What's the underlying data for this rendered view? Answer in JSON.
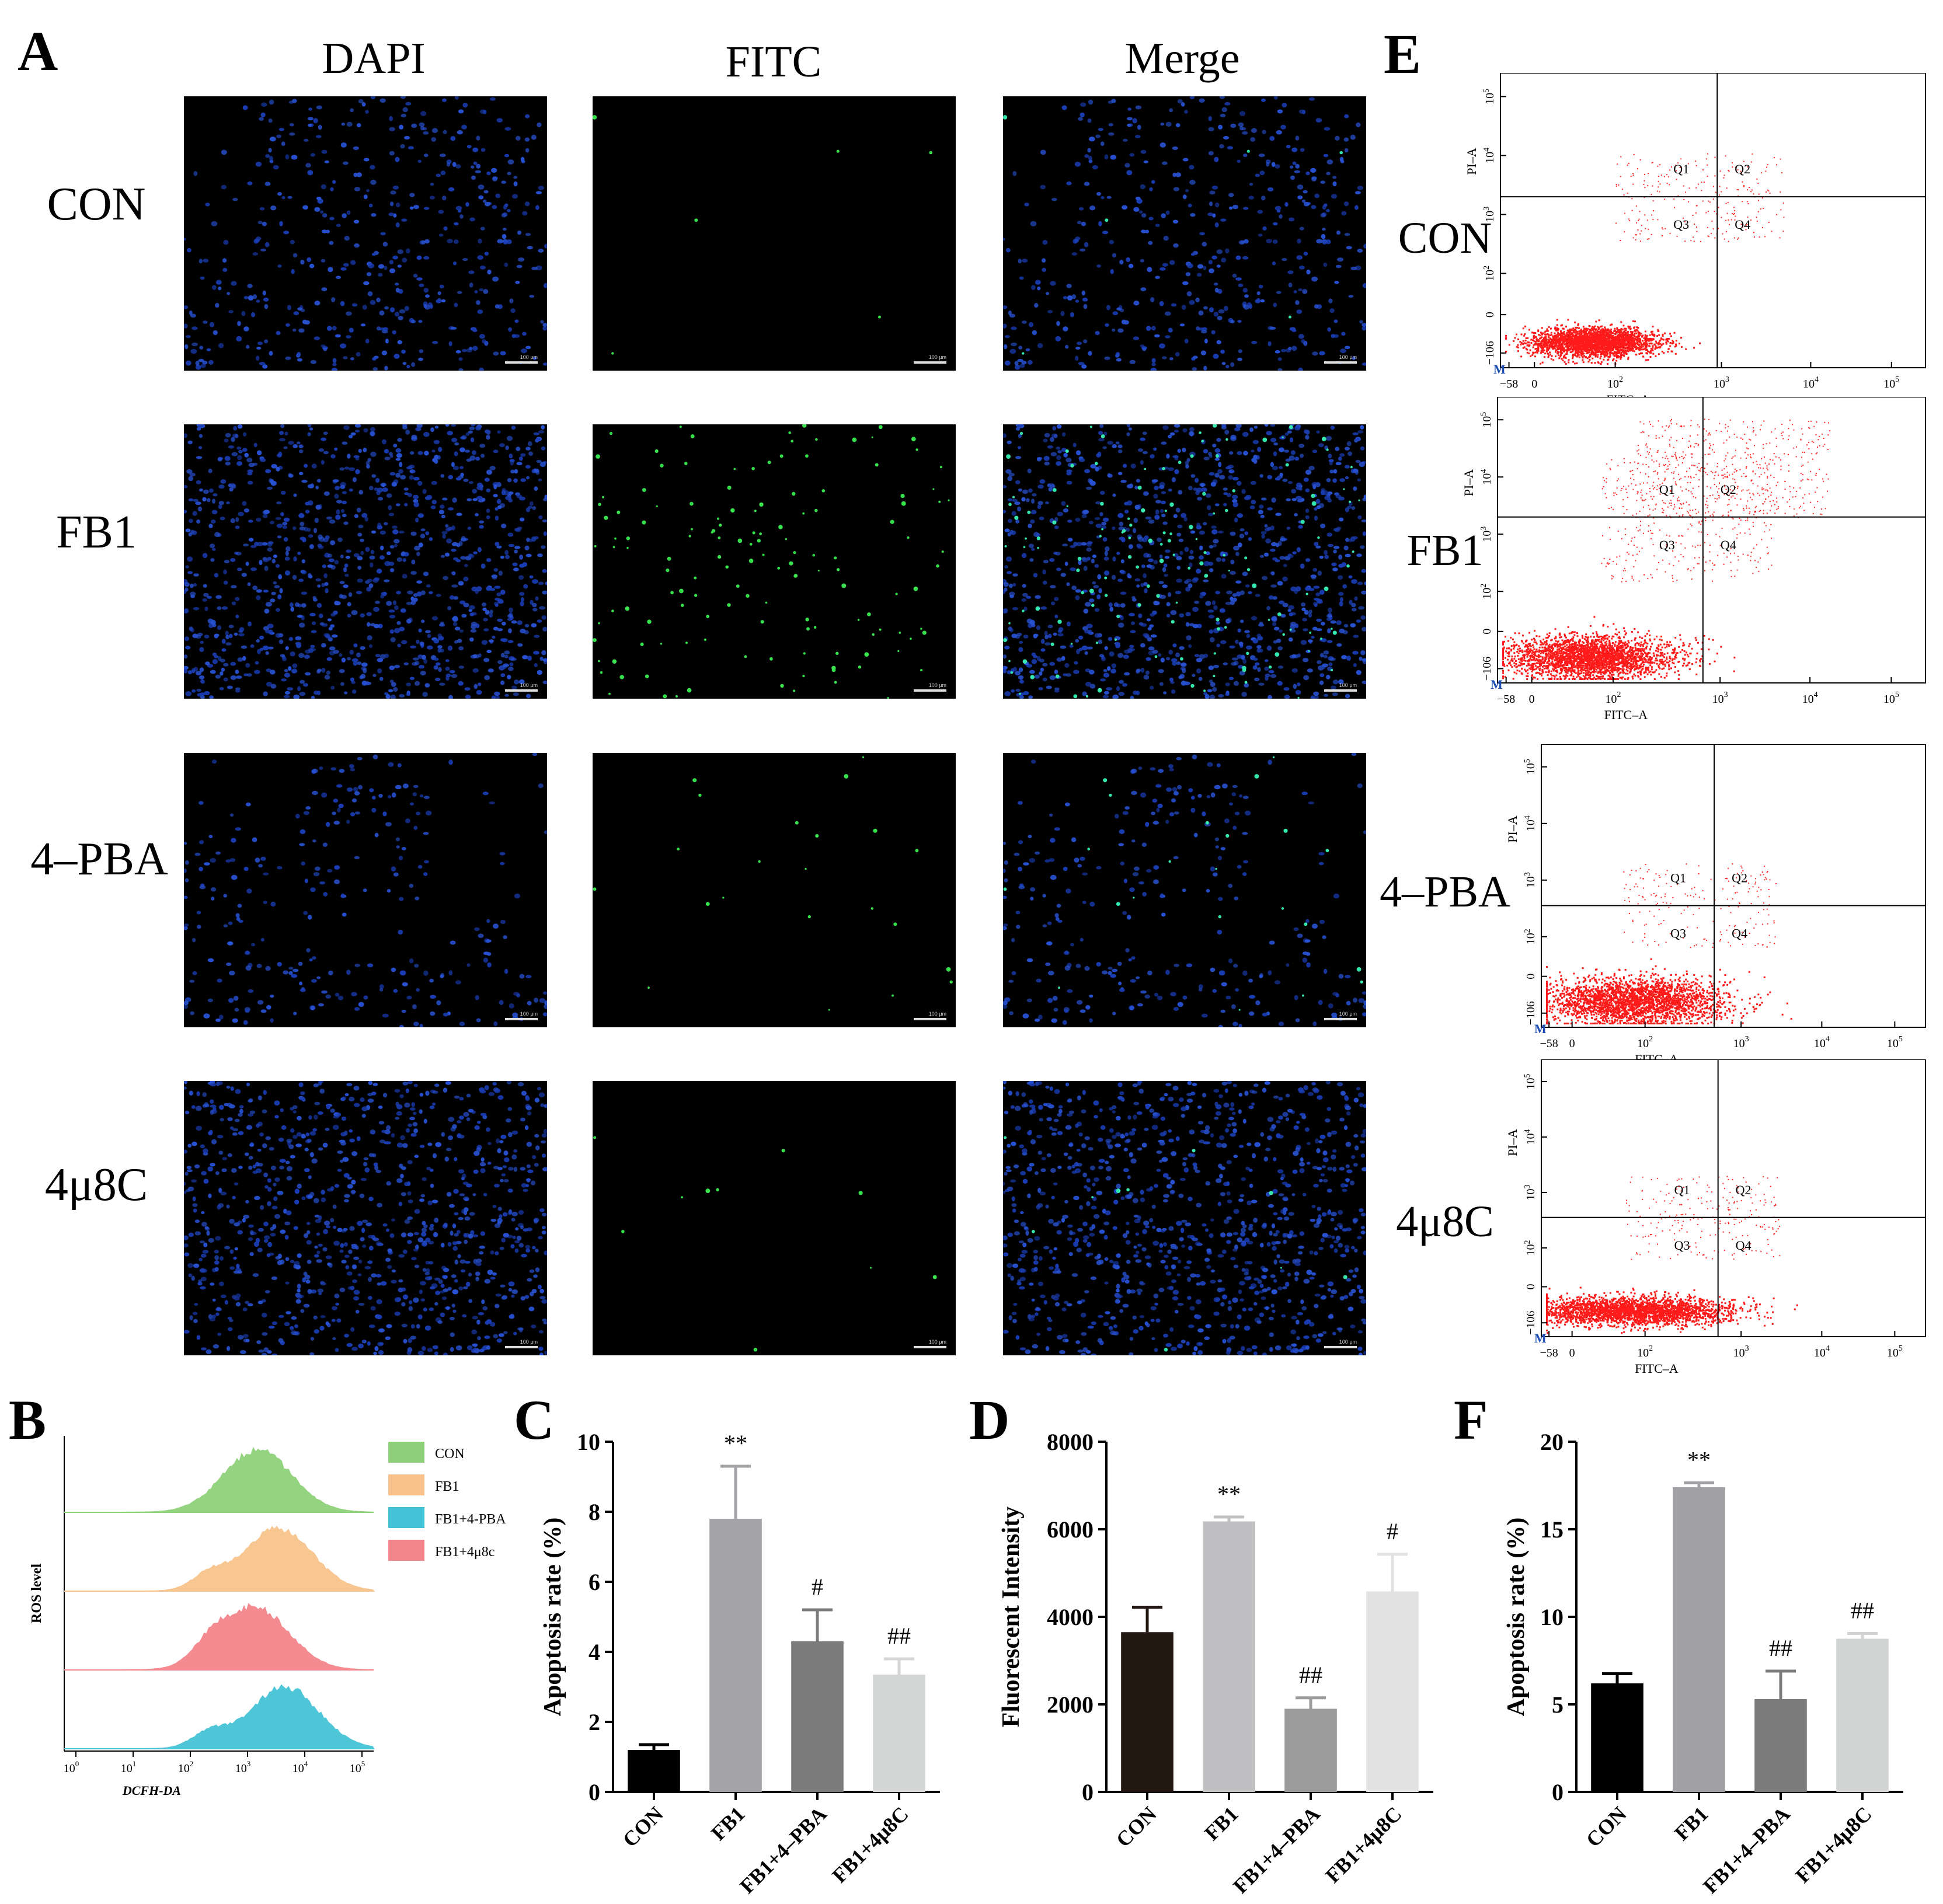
{
  "panels": {
    "A": {
      "letter": "A",
      "columns": [
        "DAPI",
        "FITC",
        "Merge"
      ],
      "rows": [
        "CON",
        "FB1",
        "4–PBA",
        "4μ8C"
      ],
      "scale_bar": "100 μm",
      "fitc_density": [
        6,
        140,
        22,
        10
      ]
    },
    "B": {
      "letter": "B",
      "ylabel": "ROS level",
      "xlabel": "DCFH-DA",
      "x_ticks": [
        "10",
        "10",
        "10",
        "10",
        "10",
        "10"
      ],
      "x_tick_exponents": [
        "0",
        "1",
        "2",
        "3",
        "4",
        "5"
      ],
      "legend": [
        {
          "name": "CON",
          "color": "#8fd17a"
        },
        {
          "name": "FB1",
          "color": "#f8c38c"
        },
        {
          "name": "FB1+4-PBA",
          "color": "#45c3d6"
        },
        {
          "name": "FB1+4μ8c",
          "color": "#f3858c"
        }
      ],
      "traces": [
        {
          "color": "#8fd17a",
          "peak_log": 3.25
        },
        {
          "color": "#f8c38c",
          "peak_log": 3.6
        },
        {
          "color": "#f3858c",
          "peak_log": 3.2
        },
        {
          "color": "#45c3d6",
          "peak_log": 3.7
        }
      ]
    },
    "E": {
      "letter": "E",
      "rows": [
        "CON",
        "FB1",
        "4–PBA",
        "4μ8C"
      ],
      "xlabel": "FITC–A",
      "ylabel": "PI–A",
      "quadrants": [
        "Q1",
        "Q2",
        "Q3",
        "Q4"
      ],
      "marker": "M",
      "y_ticks": [
        "10",
        "10",
        "10",
        "10",
        "0",
        "−106"
      ],
      "y_tick_exponents": [
        "5",
        "4",
        "3",
        "2",
        "",
        ""
      ],
      "x_ticks": [
        "−58",
        "0",
        "10",
        "10",
        "10",
        "10"
      ],
      "x_tick_exponents": [
        "",
        "",
        "2",
        "3",
        "4",
        "5"
      ]
    }
  },
  "chart_data": [
    {
      "panel": "C",
      "type": "bar",
      "ylabel": "Apoptosis rate (%)",
      "categories": [
        "CON",
        "FB1",
        "FB1+4–PBA",
        "FB1+4μ8C"
      ],
      "values": [
        1.2,
        7.8,
        4.3,
        3.35
      ],
      "errors": [
        0.15,
        1.5,
        0.9,
        0.45
      ],
      "annotations": [
        "",
        "**",
        "#",
        "##"
      ],
      "colors": [
        "#000000",
        "#a3a3a8",
        "#7b7b7b",
        "#d4d6d6"
      ],
      "ylim": [
        0,
        10
      ],
      "yticks": [
        0,
        2,
        4,
        6,
        8,
        10
      ]
    },
    {
      "panel": "D",
      "type": "bar",
      "ylabel": "Fluorescent Intensity",
      "categories": [
        "CON",
        "FB1",
        "FB1+4–PBA",
        "FB1+4μ8C"
      ],
      "values": [
        3650,
        6180,
        1900,
        4580
      ],
      "errors": [
        570,
        100,
        250,
        850
      ],
      "annotations": [
        "",
        "**",
        "##",
        "#"
      ],
      "colors": [
        "#231712",
        "#c0c0c3",
        "#9b9b9b",
        "#e2e2e2"
      ],
      "ylim": [
        0,
        8000
      ],
      "yticks": [
        0,
        2000,
        4000,
        6000,
        8000
      ]
    },
    {
      "panel": "F",
      "type": "bar",
      "ylabel": "Apoptosis rate (%)",
      "categories": [
        "CON",
        "FB1",
        "FB1+4–PBA",
        "FB1+4μ8C"
      ],
      "values": [
        6.2,
        17.4,
        5.3,
        8.75
      ],
      "errors": [
        0.55,
        0.25,
        1.6,
        0.3
      ],
      "annotations": [
        "",
        "**",
        "##",
        "##"
      ],
      "colors": [
        "#000000",
        "#a0a0a5",
        "#7b7b7b",
        "#d2d4d4"
      ],
      "ylim": [
        0,
        20
      ],
      "yticks": [
        0,
        5,
        10,
        15,
        20
      ]
    }
  ]
}
